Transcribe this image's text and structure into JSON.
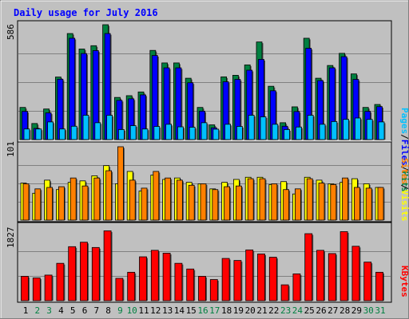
{
  "chart_data": [
    {
      "type": "bar",
      "panel": "top",
      "title": "Daily usage for July 2016",
      "ylabel": "586",
      "right_label_parts": [
        "Pages",
        "Files",
        "Hits"
      ],
      "categories": [
        "1",
        "2",
        "3",
        "4",
        "5",
        "6",
        "7",
        "8",
        "9",
        "10",
        "11",
        "12",
        "13",
        "14",
        "15",
        "16",
        "17",
        "18",
        "19",
        "20",
        "21",
        "22",
        "23",
        "24",
        "25",
        "26",
        "27",
        "28",
        "29",
        "30",
        "31"
      ],
      "ylim": [
        0,
        586
      ],
      "series": [
        {
          "name": "Hits",
          "color": "#008040",
          "values": [
            164,
            82,
            156,
            319,
            541,
            462,
            479,
            586,
            215,
            224,
            243,
            455,
            391,
            391,
            313,
            164,
            75,
            320,
            328,
            381,
            498,
            272,
            86,
            167,
            517,
            313,
            378,
            440,
            335,
            164,
            179
          ]
        },
        {
          "name": "Files",
          "color": "#0000ff",
          "values": [
            144,
            57,
            136,
            308,
            517,
            439,
            454,
            541,
            200,
            208,
            228,
            429,
            366,
            366,
            290,
            145,
            60,
            295,
            307,
            354,
            409,
            249,
            68,
            143,
            466,
            301,
            366,
            423,
            307,
            144,
            168
          ]
        },
        {
          "name": "Pages",
          "color": "#00c0ff",
          "values": [
            54,
            54,
            90,
            54,
            68,
            124,
            86,
            124,
            51,
            71,
            54,
            67,
            78,
            65,
            63,
            86,
            53,
            78,
            67,
            124,
            116,
            78,
            51,
            64,
            124,
            78,
            92,
            103,
            110,
            103,
            90
          ]
        }
      ]
    },
    {
      "type": "bar",
      "panel": "middle",
      "ylabel": "101",
      "right_label_parts": [
        "Sites",
        "Visits"
      ],
      "categories": [
        "1",
        "2",
        "3",
        "4",
        "5",
        "6",
        "7",
        "8",
        "9",
        "10",
        "11",
        "12",
        "13",
        "14",
        "15",
        "16",
        "17",
        "18",
        "19",
        "20",
        "21",
        "22",
        "23",
        "24",
        "25",
        "26",
        "27",
        "28",
        "29",
        "30",
        "31"
      ],
      "ylim": [
        0,
        101
      ],
      "series": [
        {
          "name": "Visits",
          "color": "#ffff00",
          "values": [
            51,
            37,
            55,
            42,
            52,
            54,
            61,
            75,
            50,
            67,
            40,
            62,
            56,
            58,
            52,
            50,
            43,
            52,
            56,
            59,
            59,
            49,
            53,
            36,
            59,
            55,
            50,
            52,
            57,
            50,
            45
          ]
        },
        {
          "name": "Sites",
          "color": "#ff8000",
          "values": [
            50,
            43,
            45,
            46,
            58,
            47,
            58,
            68,
            101,
            55,
            44,
            67,
            58,
            55,
            48,
            50,
            42,
            46,
            47,
            57,
            57,
            50,
            42,
            43,
            57,
            51,
            49,
            58,
            45,
            44,
            45
          ]
        }
      ]
    },
    {
      "type": "bar",
      "panel": "bottom",
      "ylabel": "1827",
      "right_label": "KBytes",
      "categories": [
        "1",
        "2",
        "3",
        "4",
        "5",
        "6",
        "7",
        "8",
        "9",
        "10",
        "11",
        "12",
        "13",
        "14",
        "15",
        "16",
        "17",
        "18",
        "19",
        "20",
        "21",
        "22",
        "23",
        "24",
        "25",
        "26",
        "27",
        "28",
        "29",
        "30",
        "31"
      ],
      "ylim": [
        0,
        1827
      ],
      "series": [
        {
          "name": "KBytes",
          "color": "#ff0000",
          "values": [
            600,
            560,
            630,
            920,
            1330,
            1440,
            1310,
            1720,
            550,
            700,
            1080,
            1240,
            1170,
            920,
            780,
            600,
            520,
            1040,
            990,
            1250,
            1150,
            1070,
            390,
            660,
            1650,
            1240,
            1160,
            1700,
            1340,
            950,
            700
          ]
        }
      ]
    }
  ],
  "x_label_colors": {
    "weekday": "#000000",
    "weekend": "#008040"
  },
  "weekend_days": [
    2,
    3,
    9,
    10,
    16,
    17,
    23,
    24,
    30,
    31
  ],
  "colors": {
    "title": "#0000ff",
    "background": "#c0c0c0",
    "grid": "#808080"
  }
}
